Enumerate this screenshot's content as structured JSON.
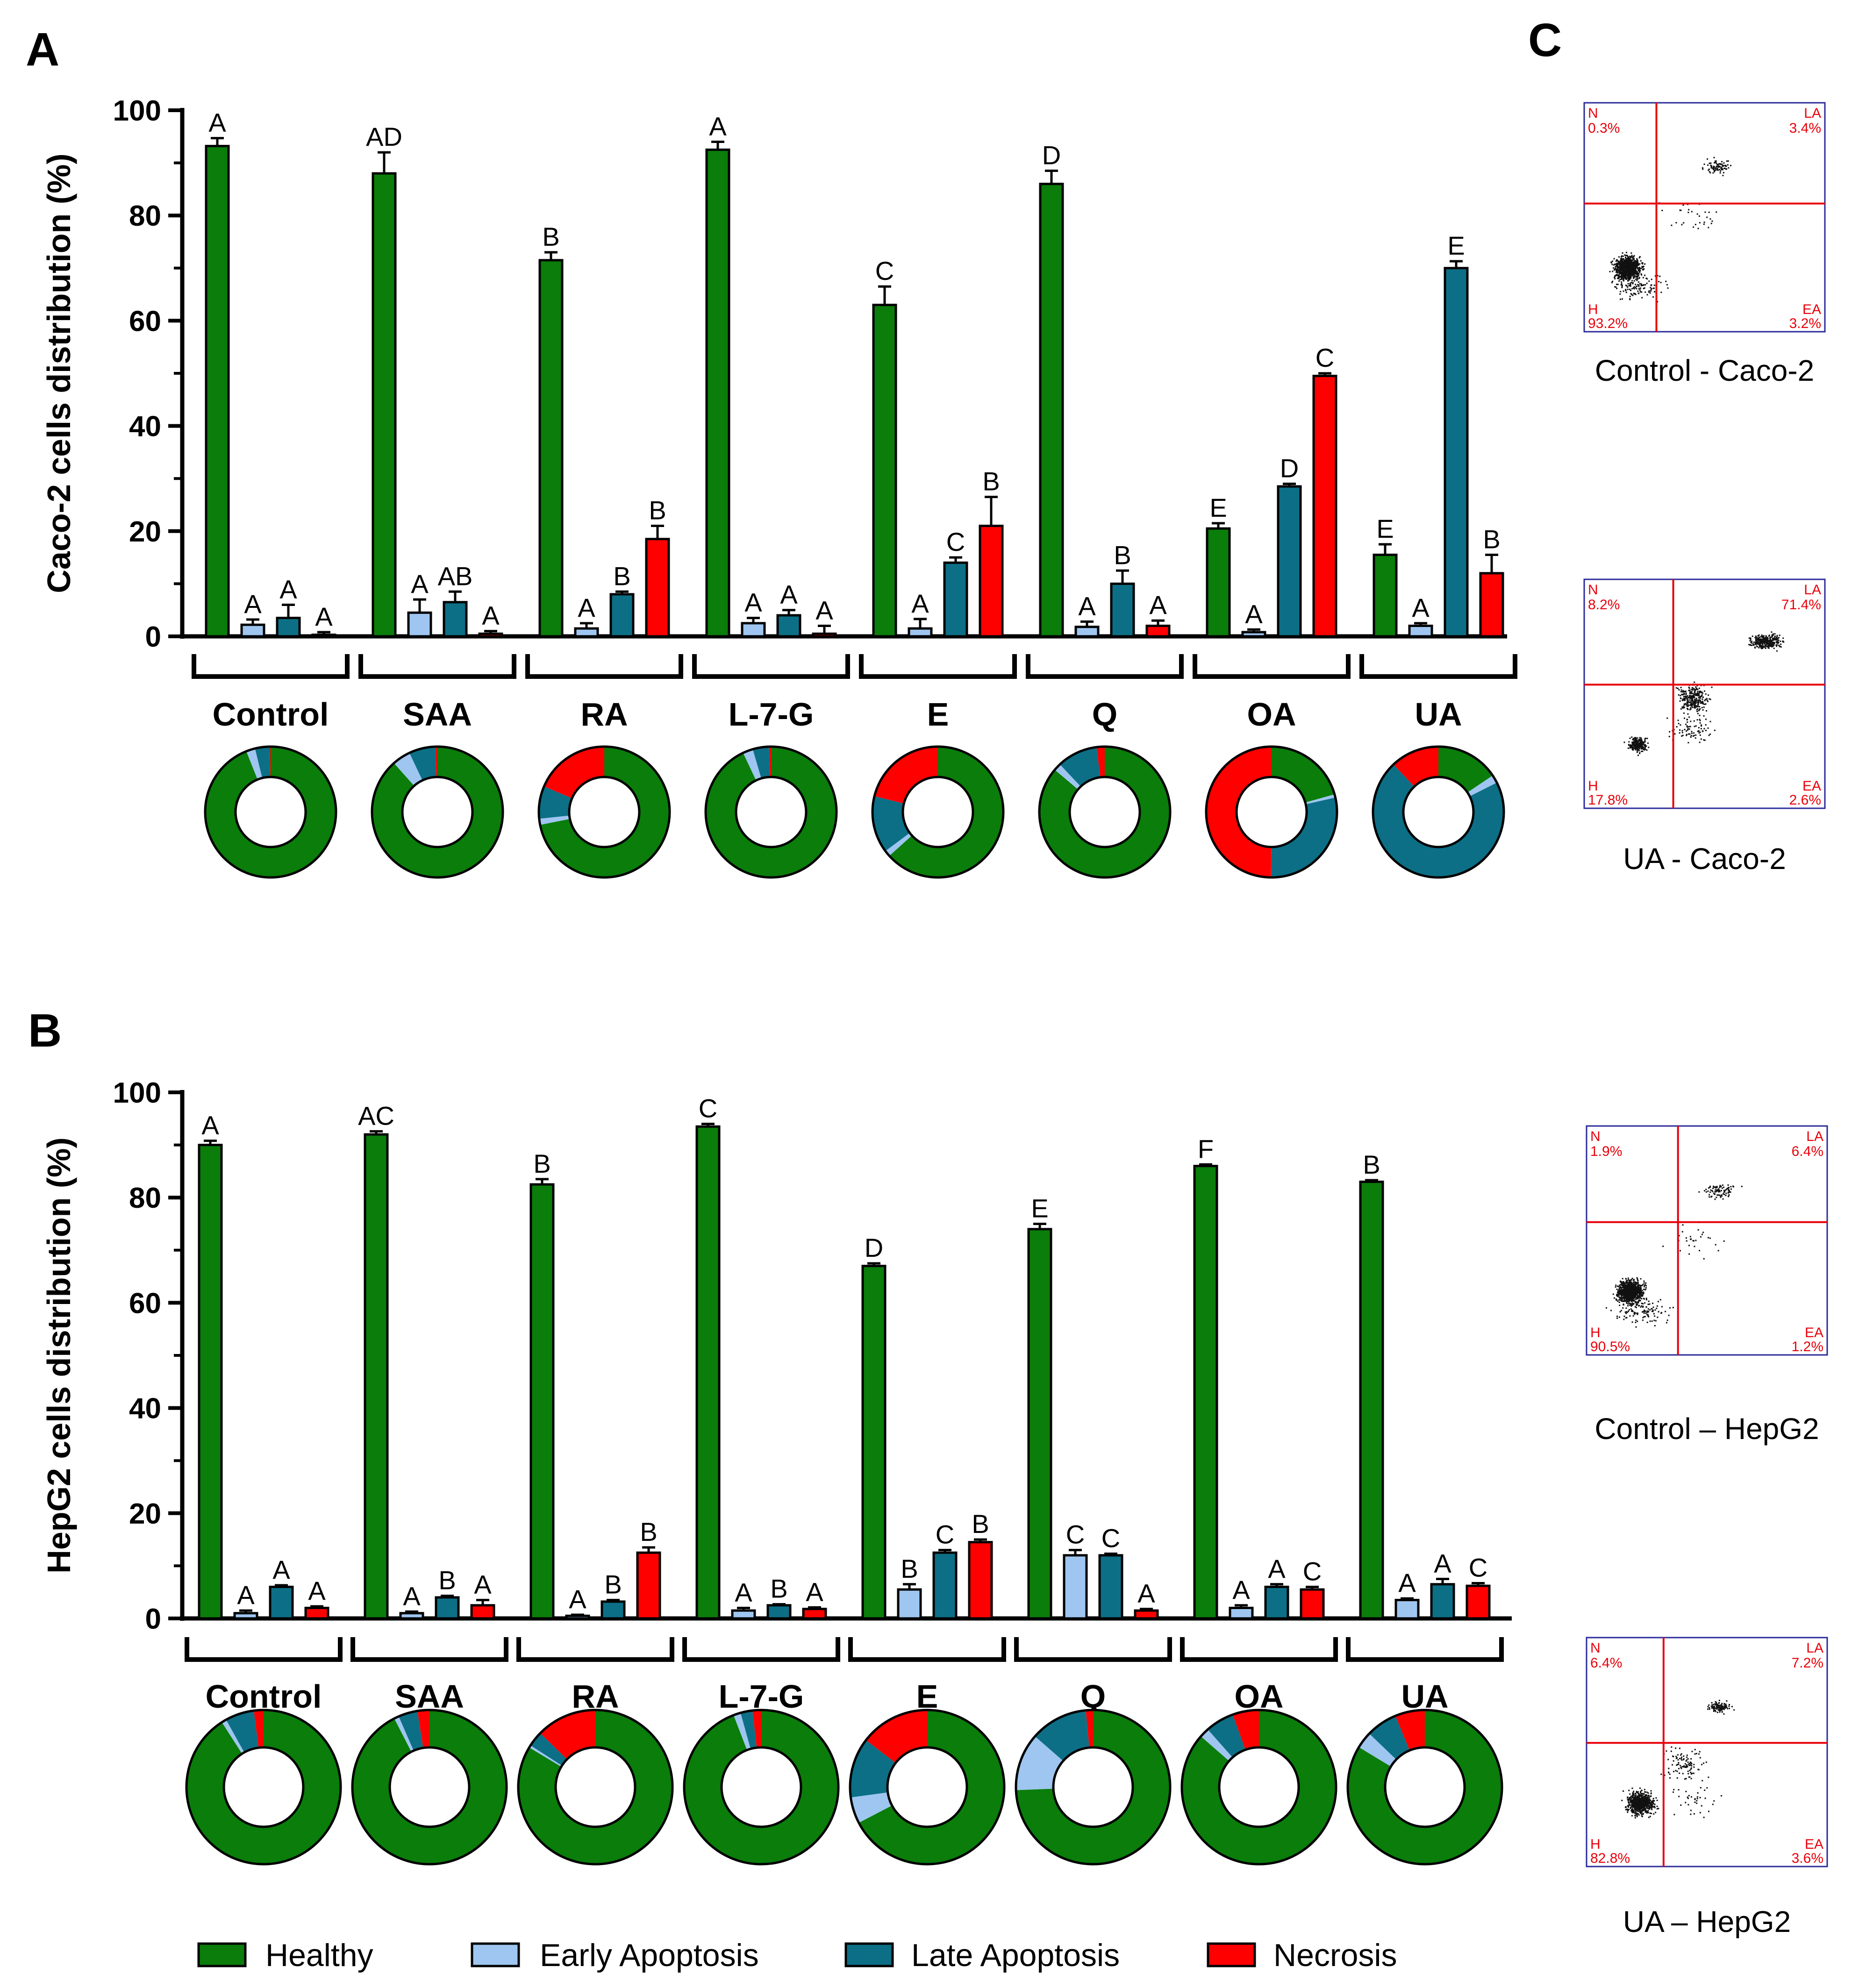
{
  "colors": {
    "healthy": "#0a7d0a",
    "early": "#9ec6f0",
    "late": "#0c6f86",
    "necrosis": "#ff0000",
    "flow_line": "#e8000a",
    "flow_frame": "#2b2b9a",
    "flow_text": "#e8000a"
  },
  "panels": {
    "A": "A",
    "B": "B",
    "C": "C"
  },
  "legend": [
    "Healthy",
    "Early Apoptosis",
    "Late Apoptosis",
    "Necrosis"
  ],
  "chart_data": [
    {
      "type": "bar",
      "panel": "A",
      "ylabel": "Caco-2 cells distribution (%)",
      "ylim": [
        0,
        100
      ],
      "yticks": [
        0,
        20,
        40,
        60,
        80,
        100
      ],
      "groups": [
        "Control",
        "SAA",
        "RA",
        "L-7-G",
        "E",
        "Q",
        "OA",
        "UA"
      ],
      "series": [
        {
          "name": "Healthy",
          "values": [
            93.2,
            88,
            71.5,
            92.5,
            63,
            86,
            20.5,
            15.5
          ],
          "errors": [
            1.5,
            4,
            1.5,
            1.5,
            3.5,
            2.5,
            1,
            2
          ],
          "letters": [
            "A",
            "AD",
            "B",
            "A",
            "C",
            "D",
            "E",
            "E"
          ]
        },
        {
          "name": "Early Apoptosis",
          "values": [
            2.2,
            4.5,
            1.5,
            2.5,
            1.5,
            1.8,
            0.8,
            2.0
          ],
          "errors": [
            1,
            2.5,
            1,
            1,
            1.8,
            1,
            0.5,
            0.5
          ],
          "letters": [
            "A",
            "A",
            "A",
            "A",
            "A",
            "A",
            "A",
            "A"
          ]
        },
        {
          "name": "Late Apoptosis",
          "values": [
            3.5,
            6.5,
            8,
            4,
            14,
            10,
            28.5,
            70
          ],
          "errors": [
            2.5,
            2,
            0.5,
            1,
            1,
            2.5,
            0.5,
            1.3
          ],
          "letters": [
            "A",
            "AB",
            "B",
            "A",
            "C",
            "B",
            "D",
            "E"
          ]
        },
        {
          "name": "Necrosis",
          "values": [
            0.3,
            0.5,
            18.5,
            0.5,
            21,
            2,
            49.5,
            12
          ],
          "errors": [
            0.5,
            0.5,
            2.5,
            1.5,
            5.5,
            1,
            0.5,
            3.5
          ],
          "letters": [
            "A",
            "A",
            "B",
            "A",
            "B",
            "A",
            "C",
            "B"
          ]
        }
      ]
    },
    {
      "type": "bar",
      "panel": "B",
      "ylabel": "HepG2 cells distribution (%)",
      "ylim": [
        0,
        100
      ],
      "yticks": [
        0,
        20,
        40,
        60,
        80,
        100
      ],
      "groups": [
        "Control",
        "SAA",
        "RA",
        "L-7-G",
        "E",
        "Q",
        "OA",
        "UA"
      ],
      "series": [
        {
          "name": "Healthy",
          "values": [
            90,
            92,
            82.5,
            93.5,
            67,
            74,
            86,
            83
          ],
          "errors": [
            0.8,
            0.6,
            1,
            0.5,
            0.5,
            1,
            0.3,
            0.3
          ],
          "letters": [
            "A",
            "AC",
            "B",
            "C",
            "D",
            "E",
            "F",
            "B"
          ]
        },
        {
          "name": "Early Apoptosis",
          "values": [
            1,
            1,
            0.5,
            1.5,
            5.5,
            12,
            2,
            3.5
          ],
          "errors": [
            0.5,
            0.3,
            0.2,
            0.5,
            1,
            1,
            0.5,
            0.3
          ],
          "letters": [
            "A",
            "A",
            "A",
            "A",
            "B",
            "C",
            "A",
            "A"
          ]
        },
        {
          "name": "Late Apoptosis",
          "values": [
            6,
            4,
            3.2,
            2.5,
            12.5,
            12,
            6,
            6.5
          ],
          "errors": [
            0.3,
            0.3,
            0.3,
            0.2,
            0.5,
            0.3,
            0.5,
            1
          ],
          "letters": [
            "A",
            "B",
            "B",
            "B",
            "C",
            "C",
            "A",
            "A"
          ]
        },
        {
          "name": "Necrosis",
          "values": [
            2,
            2.5,
            12.5,
            1.8,
            14.5,
            1.5,
            5.5,
            6.2
          ],
          "errors": [
            0.3,
            1,
            1,
            0.3,
            0.5,
            0.3,
            0.5,
            0.5
          ],
          "letters": [
            "A",
            "A",
            "B",
            "A",
            "B",
            "A",
            "C",
            "C"
          ]
        }
      ]
    },
    {
      "type": "scatter",
      "panel": "C",
      "plots": [
        {
          "caption": "Control - Caco-2",
          "N": "N",
          "LA": "LA",
          "H": "H",
          "EA": "EA",
          "n_pct": "0.3%",
          "la_pct": "3.4%",
          "h_pct": "93.2%",
          "ea_pct": "3.2%",
          "pattern": "control"
        },
        {
          "caption": "UA - Caco-2",
          "N": "N",
          "LA": "LA",
          "H": "H",
          "EA": "EA",
          "n_pct": "8.2%",
          "la_pct": "71.4%",
          "h_pct": "17.8%",
          "ea_pct": "2.6%",
          "pattern": "ua"
        },
        {
          "caption": "Control – HepG2",
          "N": "N",
          "LA": "LA",
          "H": "H",
          "EA": "EA",
          "n_pct": "1.9%",
          "la_pct": "6.4%",
          "h_pct": "90.5%",
          "ea_pct": "1.2%",
          "pattern": "control"
        },
        {
          "caption": "UA – HepG2",
          "N": "N",
          "LA": "LA",
          "H": "H",
          "EA": "EA",
          "n_pct": "6.4%",
          "la_pct": "7.2%",
          "h_pct": "82.8%",
          "ea_pct": "3.6%",
          "pattern": "ua2"
        }
      ]
    }
  ]
}
